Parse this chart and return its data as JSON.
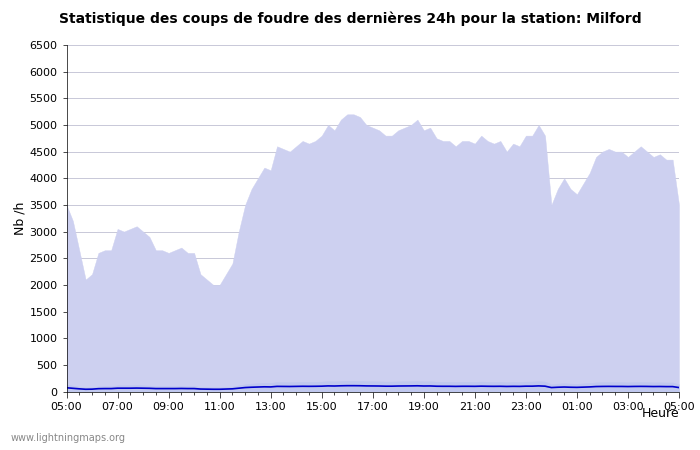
{
  "title": "Statistique des coups de foudre des dernières 24h pour la station: Milford",
  "xlabel": "Heure",
  "ylabel": "Nb /h",
  "xlim": [
    0,
    48
  ],
  "ylim": [
    0,
    6500
  ],
  "yticks": [
    0,
    500,
    1000,
    1500,
    2000,
    2500,
    3000,
    3500,
    4000,
    4500,
    5000,
    5500,
    6000,
    6500
  ],
  "xtick_labels": [
    "05:00",
    "07:00",
    "09:00",
    "11:00",
    "13:00",
    "15:00",
    "17:00",
    "19:00",
    "21:00",
    "23:00",
    "01:00",
    "03:00",
    "05:00"
  ],
  "xtick_positions": [
    0,
    4,
    8,
    12,
    16,
    20,
    24,
    28,
    32,
    36,
    40,
    44,
    48
  ],
  "bg_color": "#ffffff",
  "plot_bg_color": "#ffffff",
  "grid_color": "#c8c8d8",
  "fill_color": "#cdd0f0",
  "fill_edge_color": "#9090cc",
  "moyenne_color": "#0000cc",
  "watermark": "www.lightningmaps.org",
  "total_foudre": [
    3500,
    3200,
    2650,
    2100,
    2200,
    2600,
    2650,
    2650,
    3050,
    3000,
    3050,
    3100,
    3000,
    2900,
    2650,
    2650,
    2600,
    2650,
    2700,
    2600,
    2600,
    2200,
    2100,
    2000,
    2000,
    2200,
    2400,
    3000,
    3500,
    3800,
    4000,
    4200,
    4150,
    4600,
    4550,
    4500,
    4600,
    4700,
    4650,
    4700,
    4800,
    5000,
    4900,
    5100,
    5200,
    5200,
    5150,
    5000,
    4950,
    4900,
    4800,
    4800,
    4900,
    4950,
    5000,
    5100,
    4900,
    4950,
    4750,
    4700,
    4700,
    4600,
    4700,
    4700,
    4650,
    4800,
    4700,
    4650,
    4700,
    4500,
    4650,
    4600,
    4800,
    4800,
    5000,
    4800,
    3500,
    3800,
    4000,
    3800,
    3700,
    3900,
    4100,
    4400,
    4500,
    4550,
    4500,
    4500,
    4400,
    4500,
    4600,
    4500,
    4400,
    4450,
    4350,
    4350,
    3500
  ],
  "milford": [
    130,
    110,
    90,
    75,
    80,
    95,
    100,
    100,
    115,
    115,
    115,
    120,
    115,
    110,
    100,
    100,
    100,
    100,
    105,
    100,
    100,
    85,
    82,
    78,
    78,
    85,
    92,
    115,
    135,
    148,
    155,
    163,
    160,
    178,
    175,
    174,
    178,
    182,
    180,
    182,
    185,
    195,
    190,
    198,
    202,
    202,
    200,
    195,
    192,
    190,
    186,
    186,
    190,
    192,
    194,
    198,
    190,
    192,
    184,
    182,
    182,
    178,
    182,
    182,
    180,
    186,
    182,
    180,
    182,
    174,
    180,
    178,
    186,
    186,
    195,
    186,
    135,
    148,
    155,
    148,
    144,
    152,
    160,
    171,
    175,
    176,
    175,
    175,
    171,
    175,
    178,
    175,
    171,
    172,
    169,
    169,
    135
  ],
  "moyenne": [
    70,
    60,
    50,
    42,
    44,
    53,
    55,
    55,
    62,
    62,
    62,
    64,
    62,
    60,
    55,
    55,
    55,
    55,
    57,
    55,
    55,
    46,
    44,
    42,
    42,
    46,
    50,
    62,
    74,
    80,
    84,
    88,
    86,
    96,
    95,
    94,
    96,
    98,
    97,
    98,
    100,
    105,
    103,
    107,
    109,
    109,
    108,
    105,
    104,
    103,
    100,
    100,
    103,
    104,
    105,
    107,
    103,
    104,
    99,
    98,
    98,
    96,
    98,
    98,
    97,
    100,
    98,
    97,
    98,
    95,
    97,
    96,
    100,
    100,
    105,
    100,
    74,
    80,
    84,
    80,
    78,
    82,
    86,
    93,
    95,
    96,
    95,
    95,
    93,
    95,
    96,
    95,
    93,
    94,
    92,
    92,
    74
  ]
}
